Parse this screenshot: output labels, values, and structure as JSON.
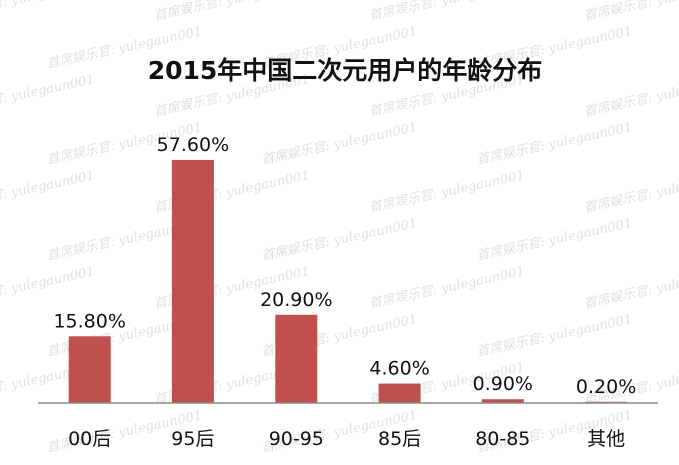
{
  "chart_data": {
    "type": "bar",
    "title": "2015年中国二次元用户的年龄分布",
    "categories": [
      "00后",
      "95后",
      "90-95",
      "85后",
      "80-85",
      "其他"
    ],
    "values": [
      15.8,
      57.6,
      20.9,
      4.6,
      0.9,
      0.2
    ],
    "data_labels": [
      "15.80%",
      "57.60%",
      "20.90%",
      "4.60%",
      "0.90%",
      "0.20%"
    ],
    "unit": "%",
    "ylim": [
      0,
      60
    ],
    "grid": false,
    "legend": "none",
    "bar_color": "#c0504d",
    "axis_color": "#8c8c8c"
  },
  "watermark": {
    "brand": "首席娱乐官:",
    "handle": "yulegaun001"
  }
}
